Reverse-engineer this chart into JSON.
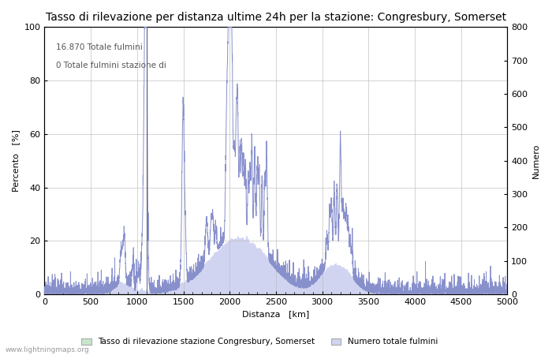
{
  "title": "Tasso di rilevazione per distanza ultime 24h per la stazione: Congresbury, Somerset",
  "xlabel": "Distanza   [km]",
  "ylabel_left": "Percento   [%]",
  "ylabel_right": "Numero",
  "annotation_line1": "16.870 Totale fulmini",
  "annotation_line2": "0 Totale fulmini stazione di",
  "xlim": [
    0,
    5000
  ],
  "ylim_left": [
    0,
    100
  ],
  "ylim_right": [
    0,
    800
  ],
  "xticks": [
    0,
    500,
    1000,
    1500,
    2000,
    2500,
    3000,
    3500,
    4000,
    4500,
    5000
  ],
  "yticks_left": [
    0,
    20,
    40,
    60,
    80,
    100
  ],
  "yticks_right": [
    0,
    100,
    200,
    300,
    400,
    500,
    600,
    700,
    800
  ],
  "legend_label1": "Tasso di rilevazione stazione Congresbury, Somerset",
  "legend_label2": "Numero totale fulmini",
  "watermark": "www.lightningmaps.org",
  "fill_color_green": "#c8e6c9",
  "fill_color_blue": "#d0d4f0",
  "line_color": "#8890cc",
  "background_color": "#ffffff",
  "grid_color": "#bbbbbb",
  "title_fontsize": 10,
  "axis_fontsize": 8,
  "tick_fontsize": 8
}
